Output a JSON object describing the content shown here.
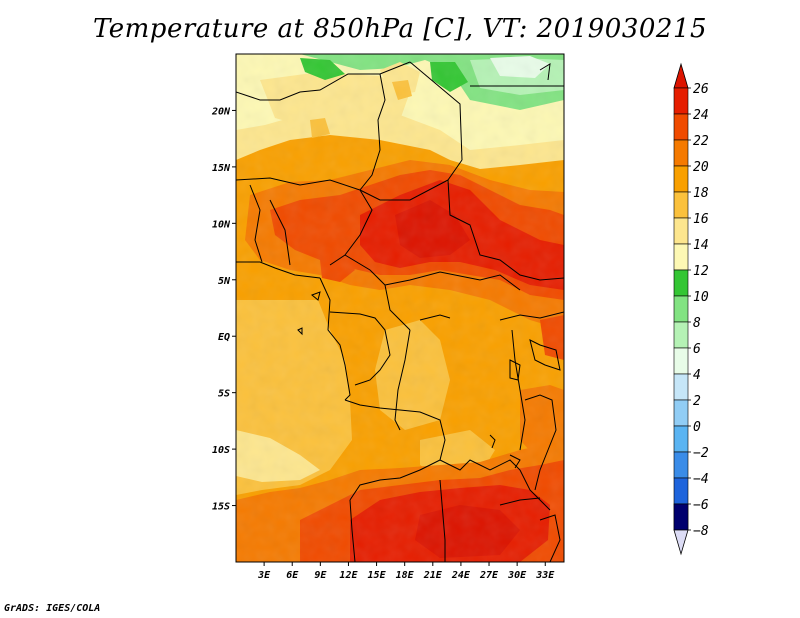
{
  "title": "Temperature at 850hPa [C], VT: 2019030215",
  "credit": "GrADS: IGES/COLA",
  "map": {
    "lon_range": [
      0,
      35
    ],
    "lat_range": [
      -20,
      25
    ],
    "lon_ticks": [
      {
        "value": 3,
        "label": "3E"
      },
      {
        "value": 6,
        "label": "6E"
      },
      {
        "value": 9,
        "label": "9E"
      },
      {
        "value": 12,
        "label": "12E"
      },
      {
        "value": 15,
        "label": "15E"
      },
      {
        "value": 18,
        "label": "18E"
      },
      {
        "value": 21,
        "label": "21E"
      },
      {
        "value": 24,
        "label": "24E"
      },
      {
        "value": 27,
        "label": "27E"
      },
      {
        "value": 30,
        "label": "30E"
      },
      {
        "value": 33,
        "label": "33E"
      }
    ],
    "lat_ticks": [
      {
        "value": 20,
        "label": "20N"
      },
      {
        "value": 15,
        "label": "15N"
      },
      {
        "value": 10,
        "label": "10N"
      },
      {
        "value": 5,
        "label": "5N"
      },
      {
        "value": 0,
        "label": "EQ"
      },
      {
        "value": -5,
        "label": "5S"
      },
      {
        "value": -10,
        "label": "10S"
      },
      {
        "value": -15,
        "label": "15S"
      }
    ]
  },
  "colorbar": {
    "levels": [
      {
        "label": "26",
        "color": "#e61e00"
      },
      {
        "label": "24",
        "color": "#f04b00"
      },
      {
        "label": "22",
        "color": "#f57a00"
      },
      {
        "label": "20",
        "color": "#f9a000"
      },
      {
        "label": "18",
        "color": "#fbc13c"
      },
      {
        "label": "16",
        "color": "#fde68e"
      },
      {
        "label": "14",
        "color": "#fdf8b4"
      },
      {
        "label": "12",
        "color": "#34c634"
      },
      {
        "label": "10",
        "color": "#82e382"
      },
      {
        "label": "8",
        "color": "#b5f2b5"
      },
      {
        "label": "6",
        "color": "#e8fce8"
      },
      {
        "label": "4",
        "color": "#c6e6f8"
      },
      {
        "label": "2",
        "color": "#91cdf5"
      },
      {
        "label": "0",
        "color": "#5ab4f2"
      },
      {
        "label": "−2",
        "color": "#3a8ce8"
      },
      {
        "label": "−4",
        "color": "#1e64dc"
      },
      {
        "label": "−6",
        "color": "#1446c8"
      },
      {
        "label": "−8",
        "color": "#0c2896"
      }
    ],
    "top_arrow_color": "#dc1400",
    "bottom_arrow_color": "#00006e",
    "under_color": "#dcdcf5"
  }
}
